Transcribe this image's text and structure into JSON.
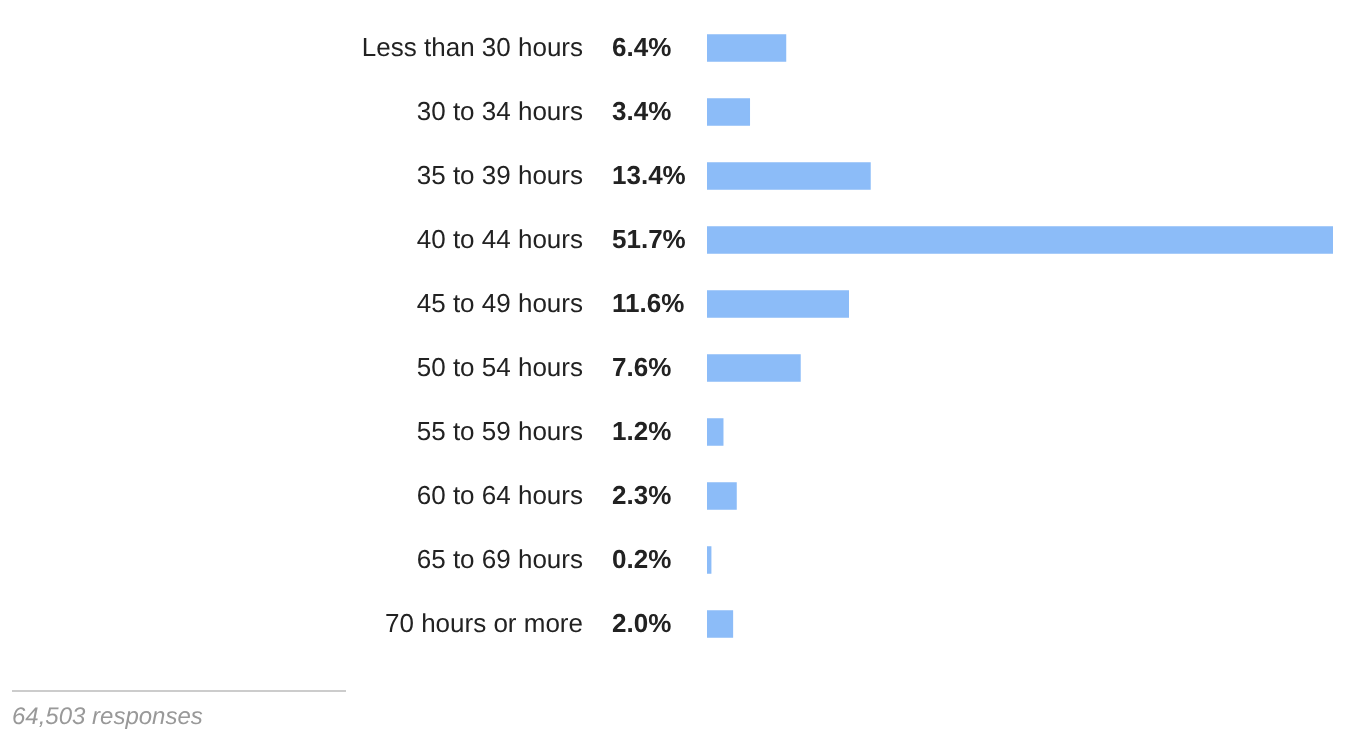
{
  "chart_data": {
    "type": "bar",
    "orientation": "horizontal",
    "categories": [
      "Less than 30 hours",
      "30 to 34 hours",
      "35 to 39 hours",
      "40 to 44 hours",
      "45 to 49 hours",
      "50 to 54 hours",
      "55 to 59 hours",
      "60 to 64 hours",
      "65 to 69 hours",
      "70 hours or more"
    ],
    "values": [
      6.4,
      3.4,
      13.4,
      51.7,
      11.6,
      7.6,
      1.2,
      2.3,
      0.2,
      2.0
    ],
    "value_labels": [
      "6.4%",
      "3.4%",
      "13.4%",
      "51.7%",
      "11.6%",
      "7.6%",
      "1.2%",
      "2.3%",
      "0.2%",
      "2.0%"
    ],
    "color": "#8cbcf8",
    "annotations": [
      "64,503 responses"
    ]
  }
}
